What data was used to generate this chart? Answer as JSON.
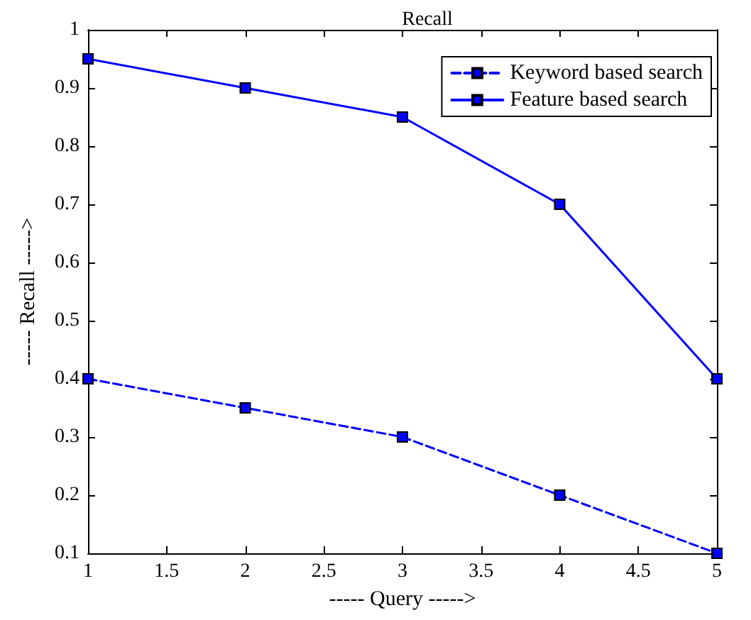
{
  "chart_data": {
    "type": "line",
    "title": "Recall",
    "xlabel": "----- Query ----->",
    "ylabel": "----- Recall ----->",
    "x": [
      1,
      2,
      3,
      4,
      5
    ],
    "series": [
      {
        "name": "Keyword based search",
        "color": "#0000ff",
        "line_style": "dashed",
        "values": [
          0.4,
          0.35,
          0.3,
          0.2,
          0.1
        ]
      },
      {
        "name": "Feature based search",
        "color": "#0000ff",
        "line_style": "solid",
        "values": [
          0.95,
          0.9,
          0.85,
          0.7,
          0.4
        ]
      }
    ],
    "xlim": [
      1,
      5
    ],
    "xticks": [
      1,
      1.5,
      2,
      2.5,
      3,
      3.5,
      4,
      4.5,
      5
    ],
    "ylim": [
      0.1,
      1
    ],
    "yticks": [
      0.1,
      0.2,
      0.3,
      0.4,
      0.5,
      0.6,
      0.7,
      0.8,
      0.9,
      1
    ],
    "grid": false,
    "legend": "top right",
    "marker": "square"
  }
}
